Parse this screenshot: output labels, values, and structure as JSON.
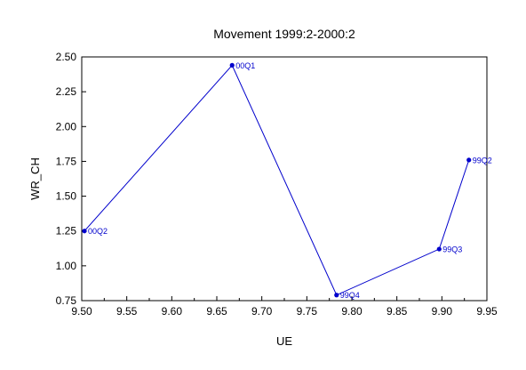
{
  "chart_data": {
    "type": "scatter",
    "title": "Movement 1999:2-2000:2",
    "xlabel": "UE",
    "ylabel": "WR_CH",
    "xlim": [
      9.5,
      9.95
    ],
    "ylim": [
      0.75,
      2.5
    ],
    "x_ticks": [
      "9.50",
      "9.55",
      "9.60",
      "9.65",
      "9.70",
      "9.75",
      "9.80",
      "9.85",
      "9.90",
      "9.95"
    ],
    "y_ticks": [
      "0.75",
      "1.00",
      "1.25",
      "1.50",
      "1.75",
      "2.00",
      "2.25",
      "2.50"
    ],
    "grid": false,
    "line_color": "#0000cc",
    "points": [
      {
        "label": "99Q2",
        "x": 9.93,
        "y": 1.76
      },
      {
        "label": "99Q3",
        "x": 9.897,
        "y": 1.12
      },
      {
        "label": "99Q4",
        "x": 9.783,
        "y": 0.79
      },
      {
        "label": "00Q1",
        "x": 9.667,
        "y": 2.44
      },
      {
        "label": "00Q2",
        "x": 9.503,
        "y": 1.25
      }
    ]
  }
}
